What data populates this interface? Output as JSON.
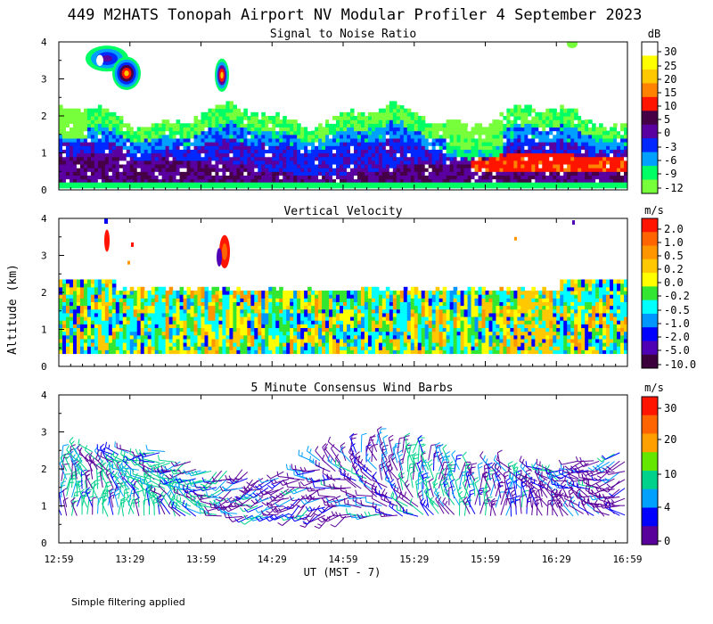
{
  "chart_data": {
    "title": "449 M2HATS Tonopah Airport NV Modular Profiler  4 September 2023",
    "ylabel": "Altitude (km)",
    "xlabel": "UT  (MST - 7)",
    "x_ticks": [
      "12:59",
      "13:29",
      "13:59",
      "14:29",
      "14:59",
      "15:29",
      "15:59",
      "16:29",
      "16:59"
    ],
    "note": "Simple filtering applied",
    "panels": [
      {
        "type": "heatmap",
        "subtitle": "Signal to Noise Ratio",
        "ylim": [
          0,
          4
        ],
        "y_ticks": [
          "0",
          "1",
          "2",
          "3",
          "4"
        ],
        "colorbar": {
          "unit": "dB",
          "labels": [
            "30",
            "25",
            "20",
            "15",
            "10",
            "5",
            "0",
            "-3",
            "-6",
            "-9",
            "-12"
          ],
          "colors": [
            "#ffffff",
            "#ffff00",
            "#ffc800",
            "#ff8200",
            "#ff1400",
            "#460046",
            "#5a00a0",
            "#0028ff",
            "#00a0ff",
            "#00ff64",
            "#78ff3c"
          ]
        }
      },
      {
        "type": "heatmap",
        "subtitle": "Vertical Velocity",
        "ylim": [
          0,
          4
        ],
        "y_ticks": [
          "0",
          "1",
          "2",
          "3",
          "4"
        ],
        "colorbar": {
          "unit": "m/s",
          "labels": [
            "2.0",
            "1.0",
            "0.5",
            "0.2",
            "0.0",
            "-0.2",
            "-0.5",
            "-1.0",
            "-2.0",
            "-5.0",
            "-10.0"
          ],
          "colors": [
            "#ff1400",
            "#ff6400",
            "#ff9600",
            "#ffc800",
            "#ffff00",
            "#32e632",
            "#00ffff",
            "#0096ff",
            "#0000ff",
            "#5000b4",
            "#3c003c"
          ]
        }
      },
      {
        "type": "wind_barbs",
        "subtitle": "5 Minute Consensus Wind Barbs",
        "ylim": [
          0,
          4
        ],
        "y_ticks": [
          "0",
          "1",
          "2",
          "3",
          "4"
        ],
        "colorbar": {
          "unit": "m/s",
          "labels": [
            "30",
            "20",
            "10",
            "4",
            "0"
          ],
          "colors": [
            "#ff1400",
            "#ff6400",
            "#ffa000",
            "#64e600",
            "#00d28c",
            "#00a0ff",
            "#0000ff",
            "#5a009a"
          ]
        }
      }
    ]
  }
}
